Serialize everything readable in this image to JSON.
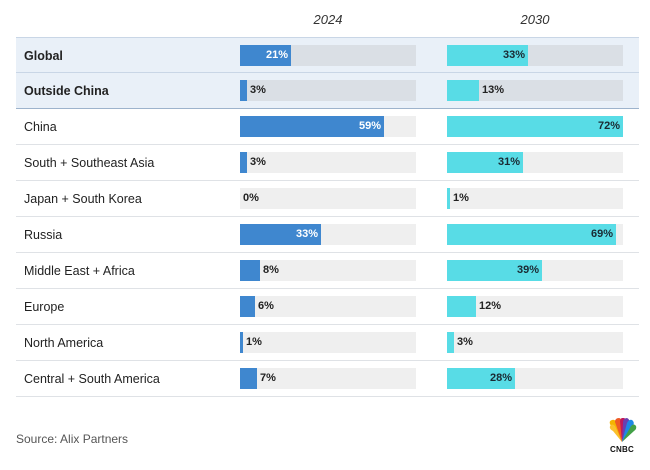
{
  "chart_data": {
    "type": "bar",
    "columns": [
      "2024",
      "2030"
    ],
    "rows": [
      {
        "label": "Global",
        "highlight": true,
        "values": [
          21,
          33
        ]
      },
      {
        "label": "Outside China",
        "highlight": true,
        "values": [
          3,
          13
        ]
      },
      {
        "label": "China",
        "highlight": false,
        "values": [
          59,
          72
        ]
      },
      {
        "label": "South + Southeast Asia",
        "highlight": false,
        "values": [
          3,
          31
        ]
      },
      {
        "label": "Japan + South Korea",
        "highlight": false,
        "values": [
          0,
          1
        ]
      },
      {
        "label": "Russia",
        "highlight": false,
        "values": [
          33,
          69
        ]
      },
      {
        "label": "Middle East + Africa",
        "highlight": false,
        "values": [
          8,
          39
        ]
      },
      {
        "label": "Europe",
        "highlight": false,
        "values": [
          6,
          12
        ]
      },
      {
        "label": "North America",
        "highlight": false,
        "values": [
          1,
          3
        ]
      },
      {
        "label": "Central + South America",
        "highlight": false,
        "values": [
          7,
          28
        ]
      }
    ],
    "value_suffix": "%",
    "xlim": [
      0,
      72
    ],
    "colors": {
      "2024": "#3f87cf",
      "2030": "#58dce6"
    }
  },
  "footer": {
    "source": "Source: Alix Partners",
    "logo_text": "CNBC",
    "logo_icon": "nbc-peacock-icon"
  }
}
